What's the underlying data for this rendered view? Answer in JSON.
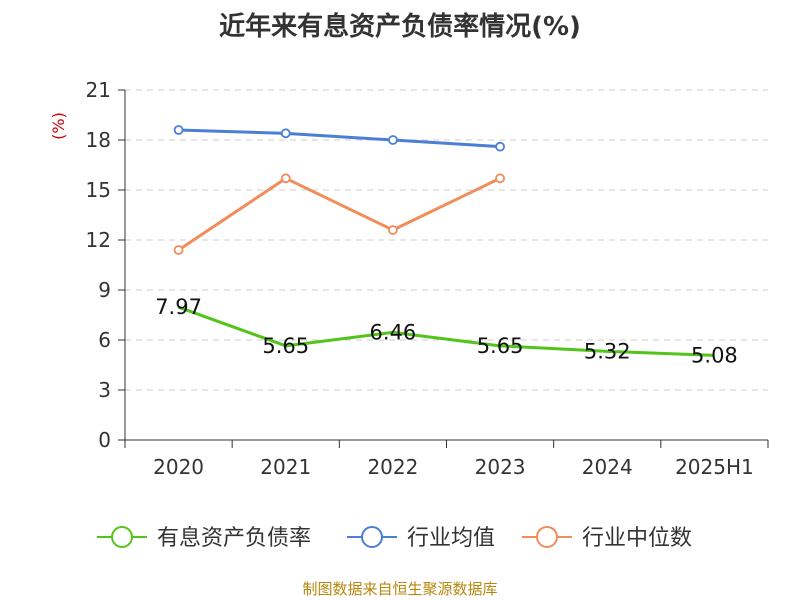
{
  "title": "近年来有息资产负债率情况(%)",
  "source": "制图数据来自恒生聚源数据库",
  "colors": {
    "有息资产负债率": "#52c41a",
    "行业均值": "#4a7fd6",
    "行业中位数": "#f28c5a",
    "unit": "#cc0000",
    "axis": "#333333",
    "grid": "#cccccc"
  },
  "chart_data": {
    "type": "line",
    "categories": [
      "2020",
      "2021",
      "2022",
      "2023",
      "2024",
      "2025H1"
    ],
    "y_unit_label": "(%)",
    "ylim": [
      0,
      21
    ],
    "yticks": [
      0,
      3,
      6,
      9,
      12,
      15,
      18,
      21
    ],
    "grid": true,
    "legend_position": "bottom",
    "series": [
      {
        "name": "有息资产负债率",
        "values": [
          7.97,
          5.65,
          6.46,
          5.65,
          5.32,
          5.08
        ],
        "data_labels": [
          "7.97",
          "5.65",
          "6.46",
          "5.65",
          "5.32",
          "5.08"
        ],
        "marker": false
      },
      {
        "name": "行业均值",
        "values": [
          18.6,
          18.4,
          18.0,
          17.6,
          null,
          null
        ],
        "marker": true
      },
      {
        "name": "行业中位数",
        "values": [
          11.4,
          15.7,
          12.6,
          15.7,
          null,
          null
        ],
        "marker": true
      }
    ]
  }
}
